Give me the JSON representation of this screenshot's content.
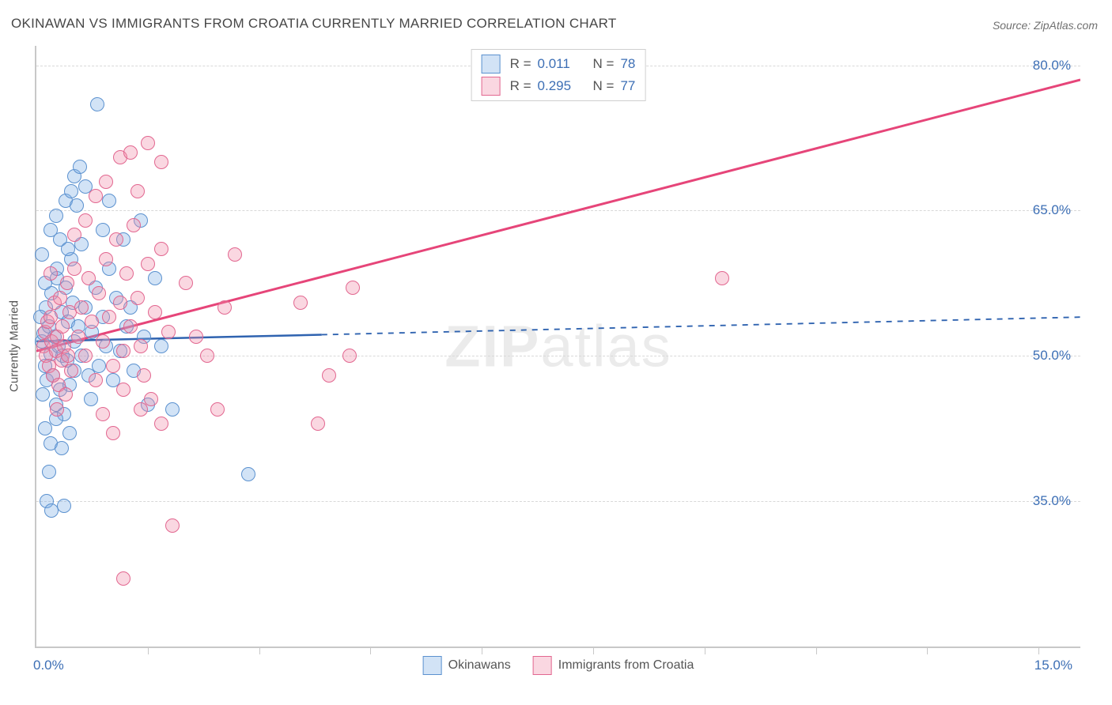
{
  "title": "OKINAWAN VS IMMIGRANTS FROM CROATIA CURRENTLY MARRIED CORRELATION CHART",
  "source": "Source: ZipAtlas.com",
  "watermark": {
    "bold": "ZIP",
    "rest": "atlas"
  },
  "chart": {
    "type": "scatter",
    "background_color": "#ffffff",
    "grid_color": "#d8d8d8",
    "axis_color": "#c8c8c8",
    "label_color": "#3d6fb5",
    "y_axis_title": "Currently Married",
    "xlim": [
      0,
      15
    ],
    "ylim": [
      20,
      82
    ],
    "x_tick_positions": [
      1.6,
      3.2,
      4.8,
      6.4,
      8.0,
      9.6,
      11.2,
      12.8,
      14.4
    ],
    "x_min_label": "0.0%",
    "x_max_label": "15.0%",
    "y_ticks": [
      {
        "value": 35.0,
        "label": "35.0%"
      },
      {
        "value": 50.0,
        "label": "50.0%"
      },
      {
        "value": 65.0,
        "label": "65.0%"
      },
      {
        "value": 80.0,
        "label": "80.0%"
      }
    ],
    "marker_radius": 8,
    "marker_stroke_width": 1.5,
    "series": [
      {
        "id": "okinawans",
        "label": "Okinawans",
        "r": "0.011",
        "n": "78",
        "fill": "rgba(125,175,230,0.35)",
        "stroke": "#5b91cf",
        "trend": {
          "color": "#2f63b0",
          "width": 2.5,
          "solid_to_x": 4.1,
          "dash": "7,7",
          "y_start": 51.5,
          "y_end": 54.0
        },
        "points": [
          [
            0.08,
            51.5
          ],
          [
            0.1,
            52.3
          ],
          [
            0.12,
            49.0
          ],
          [
            0.14,
            55.0
          ],
          [
            0.15,
            47.5
          ],
          [
            0.18,
            53.0
          ],
          [
            0.2,
            50.2
          ],
          [
            0.22,
            56.5
          ],
          [
            0.24,
            48.0
          ],
          [
            0.26,
            52.0
          ],
          [
            0.28,
            45.0
          ],
          [
            0.3,
            58.0
          ],
          [
            0.32,
            51.0
          ],
          [
            0.34,
            46.5
          ],
          [
            0.36,
            54.5
          ],
          [
            0.38,
            50.0
          ],
          [
            0.4,
            44.0
          ],
          [
            0.42,
            57.0
          ],
          [
            0.44,
            49.5
          ],
          [
            0.46,
            53.5
          ],
          [
            0.48,
            47.0
          ],
          [
            0.5,
            60.0
          ],
          [
            0.52,
            55.5
          ],
          [
            0.54,
            48.5
          ],
          [
            0.2,
            63.0
          ],
          [
            0.28,
            64.5
          ],
          [
            0.34,
            62.0
          ],
          [
            0.42,
            66.0
          ],
          [
            0.5,
            67.0
          ],
          [
            0.58,
            65.5
          ],
          [
            0.3,
            59.0
          ],
          [
            0.45,
            61.0
          ],
          [
            0.12,
            42.5
          ],
          [
            0.2,
            41.0
          ],
          [
            0.28,
            43.5
          ],
          [
            0.36,
            40.5
          ],
          [
            0.18,
            38.0
          ],
          [
            0.55,
            51.5
          ],
          [
            0.6,
            53.0
          ],
          [
            0.65,
            50.0
          ],
          [
            0.7,
            55.0
          ],
          [
            0.75,
            48.0
          ],
          [
            0.8,
            52.5
          ],
          [
            0.85,
            57.0
          ],
          [
            0.9,
            49.0
          ],
          [
            0.95,
            54.0
          ],
          [
            1.0,
            51.0
          ],
          [
            1.05,
            59.0
          ],
          [
            1.1,
            47.5
          ],
          [
            1.15,
            56.0
          ],
          [
            1.2,
            50.5
          ],
          [
            1.25,
            62.0
          ],
          [
            1.3,
            53.0
          ],
          [
            1.4,
            48.5
          ],
          [
            1.5,
            64.0
          ],
          [
            1.6,
            45.0
          ],
          [
            1.7,
            58.0
          ],
          [
            1.8,
            51.0
          ],
          [
            0.88,
            76.0
          ],
          [
            0.55,
            68.5
          ],
          [
            0.62,
            69.5
          ],
          [
            0.7,
            67.5
          ],
          [
            0.15,
            35.0
          ],
          [
            0.22,
            34.0
          ],
          [
            0.4,
            34.5
          ],
          [
            1.95,
            44.5
          ],
          [
            0.95,
            63.0
          ],
          [
            1.05,
            66.0
          ],
          [
            1.35,
            55.0
          ],
          [
            1.55,
            52.0
          ],
          [
            0.08,
            60.5
          ],
          [
            0.12,
            57.5
          ],
          [
            0.06,
            54.0
          ],
          [
            0.09,
            46.0
          ],
          [
            0.65,
            61.5
          ],
          [
            3.05,
            37.8
          ],
          [
            0.78,
            45.5
          ],
          [
            0.48,
            42.0
          ]
        ]
      },
      {
        "id": "croatia",
        "label": "Immigrants from Croatia",
        "r": "0.295",
        "n": "77",
        "fill": "rgba(240,140,170,0.35)",
        "stroke": "#e26790",
        "trend": {
          "color": "#e64579",
          "width": 3,
          "solid_to_x": 15.0,
          "dash": null,
          "y_start": 50.5,
          "y_end": 78.5
        },
        "points": [
          [
            0.1,
            51.0
          ],
          [
            0.12,
            52.5
          ],
          [
            0.14,
            50.0
          ],
          [
            0.16,
            53.5
          ],
          [
            0.18,
            49.0
          ],
          [
            0.2,
            54.0
          ],
          [
            0.22,
            51.5
          ],
          [
            0.24,
            48.0
          ],
          [
            0.26,
            55.5
          ],
          [
            0.28,
            50.5
          ],
          [
            0.3,
            52.0
          ],
          [
            0.32,
            47.0
          ],
          [
            0.34,
            56.0
          ],
          [
            0.36,
            49.5
          ],
          [
            0.38,
            53.0
          ],
          [
            0.4,
            51.0
          ],
          [
            0.42,
            46.0
          ],
          [
            0.44,
            57.5
          ],
          [
            0.46,
            50.0
          ],
          [
            0.48,
            54.5
          ],
          [
            0.5,
            48.5
          ],
          [
            0.55,
            59.0
          ],
          [
            0.6,
            52.0
          ],
          [
            0.65,
            55.0
          ],
          [
            0.7,
            50.0
          ],
          [
            0.75,
            58.0
          ],
          [
            0.8,
            53.5
          ],
          [
            0.85,
            47.5
          ],
          [
            0.9,
            56.5
          ],
          [
            0.95,
            51.5
          ],
          [
            1.0,
            60.0
          ],
          [
            1.05,
            54.0
          ],
          [
            1.1,
            49.0
          ],
          [
            1.15,
            62.0
          ],
          [
            1.2,
            55.5
          ],
          [
            1.25,
            50.5
          ],
          [
            1.3,
            58.5
          ],
          [
            1.35,
            53.0
          ],
          [
            1.4,
            63.5
          ],
          [
            1.45,
            56.0
          ],
          [
            1.5,
            51.0
          ],
          [
            1.55,
            48.0
          ],
          [
            1.6,
            59.5
          ],
          [
            1.7,
            54.5
          ],
          [
            1.8,
            61.0
          ],
          [
            1.9,
            52.5
          ],
          [
            1.2,
            70.5
          ],
          [
            1.35,
            71.0
          ],
          [
            1.6,
            72.0
          ],
          [
            1.8,
            70.0
          ],
          [
            1.0,
            68.0
          ],
          [
            0.85,
            66.5
          ],
          [
            1.5,
            44.5
          ],
          [
            1.65,
            45.5
          ],
          [
            1.8,
            43.0
          ],
          [
            1.1,
            42.0
          ],
          [
            0.95,
            44.0
          ],
          [
            1.25,
            46.5
          ],
          [
            2.15,
            57.5
          ],
          [
            2.3,
            52.0
          ],
          [
            2.45,
            50.0
          ],
          [
            2.6,
            44.5
          ],
          [
            2.7,
            55.0
          ],
          [
            2.85,
            60.5
          ],
          [
            1.95,
            32.5
          ],
          [
            1.25,
            27.0
          ],
          [
            4.05,
            43.0
          ],
          [
            4.5,
            50.0
          ],
          [
            4.2,
            48.0
          ],
          [
            3.8,
            55.5
          ],
          [
            4.55,
            57.0
          ],
          [
            9.85,
            58.0
          ],
          [
            0.7,
            64.0
          ],
          [
            1.45,
            67.0
          ],
          [
            0.55,
            62.5
          ],
          [
            0.3,
            44.5
          ],
          [
            0.2,
            58.5
          ]
        ]
      }
    ],
    "legend_top": {
      "r_prefix": "R  =",
      "n_prefix": "N  ="
    },
    "legend_bottom_labels": [
      "Okinawans",
      "Immigrants from Croatia"
    ]
  }
}
